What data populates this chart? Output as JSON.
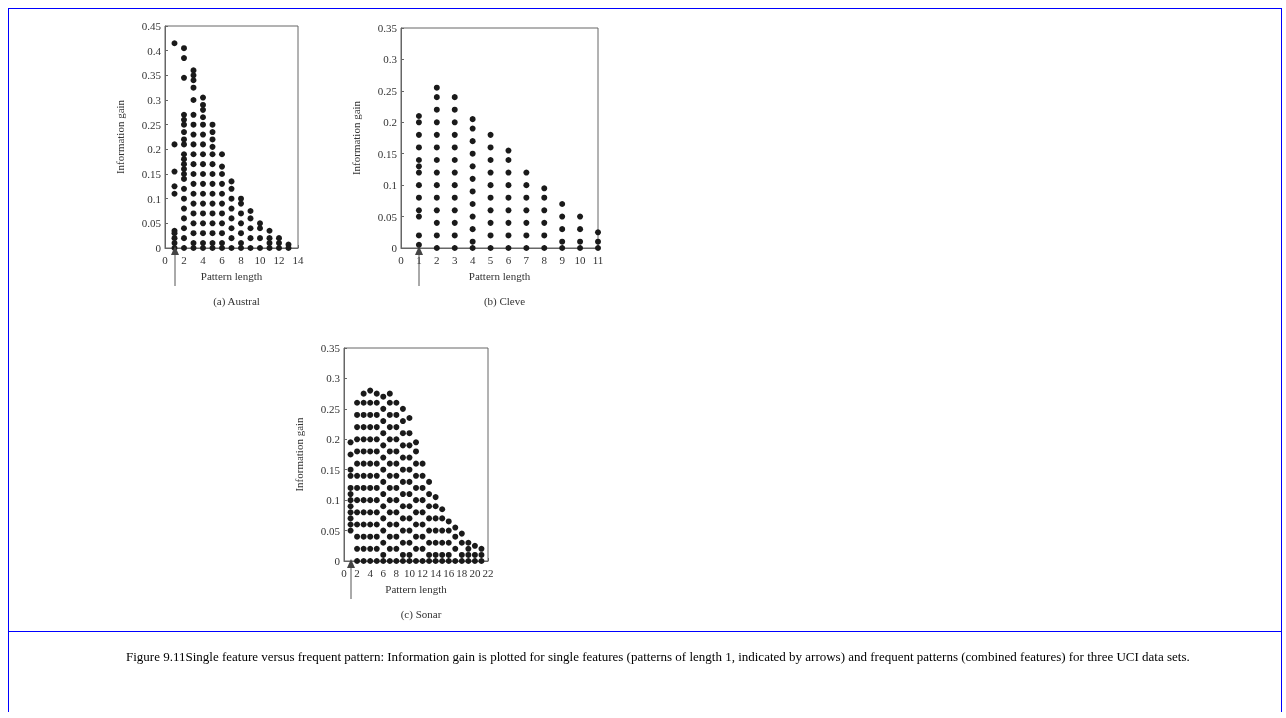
{
  "chart_data": [
    {
      "type": "scatter",
      "title": "(a) Austral",
      "xlabel": "Pattern length",
      "ylabel": "Information gain",
      "xlim": [
        0,
        14
      ],
      "xticks": [
        0,
        2,
        4,
        6,
        8,
        10,
        12,
        14
      ],
      "ylim": [
        0,
        0.45
      ],
      "yticks": [
        0,
        0.05,
        0.1,
        0.15,
        0.2,
        0.25,
        0.3,
        0.35,
        0.4,
        0.45
      ],
      "marker": "circle",
      "annotations": [
        "Figure 9.11Single feature versus frequent pattern: Information gain is plotted for single features (patterns of length 1, indicated by arrows) and frequent patterns (combined features) for three UCI data sets."
      ],
      "series": [
        {
          "color": "#1a1a1a",
          "x": [
            1,
            1,
            1,
            1,
            1,
            1,
            1,
            1,
            1,
            1
          ],
          "values": [
            0.415,
            0.21,
            0.155,
            0.125,
            0.11,
            0.035,
            0.03,
            0.02,
            0.01,
            0
          ]
        },
        {
          "color": "#1a1a1a",
          "x": [
            2,
            2,
            2,
            2,
            2,
            2,
            2,
            2,
            2,
            2,
            2,
            2,
            2,
            2,
            2,
            2,
            2,
            2,
            2,
            2,
            2,
            2
          ],
          "values": [
            0.405,
            0.385,
            0.345,
            0.27,
            0.26,
            0.25,
            0.235,
            0.22,
            0.21,
            0.19,
            0.18,
            0.17,
            0.16,
            0.15,
            0.14,
            0.12,
            0.1,
            0.08,
            0.06,
            0.04,
            0.02,
            0
          ]
        },
        {
          "color": "#1a1a1a",
          "x": [
            3,
            3,
            3,
            3,
            3,
            3,
            3,
            3,
            3,
            3,
            3,
            3,
            3,
            3,
            3,
            3,
            3,
            3,
            3,
            3
          ],
          "values": [
            0.36,
            0.35,
            0.34,
            0.325,
            0.3,
            0.27,
            0.25,
            0.23,
            0.21,
            0.19,
            0.17,
            0.15,
            0.13,
            0.11,
            0.09,
            0.07,
            0.05,
            0.03,
            0.01,
            0
          ]
        },
        {
          "color": "#1a1a1a",
          "x": [
            4,
            4,
            4,
            4,
            4,
            4,
            4,
            4,
            4,
            4,
            4,
            4,
            4,
            4,
            4,
            4,
            4,
            4
          ],
          "values": [
            0.305,
            0.29,
            0.28,
            0.265,
            0.25,
            0.23,
            0.21,
            0.19,
            0.17,
            0.15,
            0.13,
            0.11,
            0.09,
            0.07,
            0.05,
            0.03,
            0.01,
            0
          ]
        },
        {
          "color": "#1a1a1a",
          "x": [
            5,
            5,
            5,
            5,
            5,
            5,
            5,
            5,
            5,
            5,
            5,
            5,
            5,
            5,
            5
          ],
          "values": [
            0.25,
            0.235,
            0.22,
            0.205,
            0.19,
            0.17,
            0.15,
            0.13,
            0.11,
            0.09,
            0.07,
            0.05,
            0.03,
            0.01,
            0
          ]
        },
        {
          "color": "#1a1a1a",
          "x": [
            6,
            6,
            6,
            6,
            6,
            6,
            6,
            6,
            6,
            6,
            6
          ],
          "values": [
            0.19,
            0.165,
            0.15,
            0.13,
            0.11,
            0.09,
            0.07,
            0.05,
            0.03,
            0.01,
            0
          ]
        },
        {
          "color": "#1a1a1a",
          "x": [
            7,
            7,
            7,
            7,
            7,
            7,
            7,
            7
          ],
          "values": [
            0.135,
            0.12,
            0.1,
            0.08,
            0.06,
            0.04,
            0.02,
            0
          ]
        },
        {
          "color": "#1a1a1a",
          "x": [
            8,
            8,
            8,
            8,
            8,
            8,
            8
          ],
          "values": [
            0.1,
            0.09,
            0.07,
            0.05,
            0.03,
            0.01,
            0
          ]
        },
        {
          "color": "#1a1a1a",
          "x": [
            9,
            9,
            9,
            9,
            9
          ],
          "values": [
            0.075,
            0.06,
            0.04,
            0.02,
            0
          ]
        },
        {
          "color": "#1a1a1a",
          "x": [
            10,
            10,
            10,
            10
          ],
          "values": [
            0.05,
            0.04,
            0.02,
            0
          ]
        },
        {
          "color": "#1a1a1a",
          "x": [
            11,
            11,
            11,
            11
          ],
          "values": [
            0.035,
            0.02,
            0.01,
            0
          ]
        },
        {
          "color": "#1a1a1a",
          "x": [
            12,
            12,
            12
          ],
          "values": [
            0.02,
            0.01,
            0
          ]
        },
        {
          "color": "#1a1a1a",
          "x": [
            13,
            13
          ],
          "values": [
            0.007,
            0
          ]
        }
      ]
    },
    {
      "type": "scatter",
      "title": "(b) Cleve",
      "xlabel": "Pattern length",
      "ylabel": "Information gain",
      "xlim": [
        0,
        11
      ],
      "xticks": [
        0,
        1,
        2,
        3,
        4,
        5,
        6,
        7,
        8,
        9,
        10,
        11
      ],
      "ylim": [
        0,
        0.35
      ],
      "yticks": [
        0,
        0.05,
        0.1,
        0.15,
        0.2,
        0.25,
        0.3,
        0.35
      ],
      "marker": "circle",
      "series": [
        {
          "color": "#1a1a1a",
          "x": [
            1,
            1,
            1,
            1,
            1,
            1,
            1,
            1,
            1,
            1,
            1,
            1,
            1
          ],
          "values": [
            0.21,
            0.2,
            0.18,
            0.16,
            0.14,
            0.13,
            0.12,
            0.1,
            0.08,
            0.06,
            0.05,
            0.02,
            0.005
          ]
        },
        {
          "color": "#1a1a1a",
          "x": [
            2,
            2,
            2,
            2,
            2,
            2,
            2,
            2,
            2,
            2,
            2,
            2,
            2,
            2
          ],
          "values": [
            0.255,
            0.24,
            0.22,
            0.2,
            0.18,
            0.16,
            0.14,
            0.12,
            0.1,
            0.08,
            0.06,
            0.04,
            0.02,
            0
          ]
        },
        {
          "color": "#1a1a1a",
          "x": [
            3,
            3,
            3,
            3,
            3,
            3,
            3,
            3,
            3,
            3,
            3,
            3,
            3
          ],
          "values": [
            0.24,
            0.22,
            0.2,
            0.18,
            0.16,
            0.14,
            0.12,
            0.1,
            0.08,
            0.06,
            0.04,
            0.02,
            0
          ]
        },
        {
          "color": "#1a1a1a",
          "x": [
            4,
            4,
            4,
            4,
            4,
            4,
            4,
            4,
            4,
            4,
            4,
            4
          ],
          "values": [
            0.205,
            0.19,
            0.17,
            0.15,
            0.13,
            0.11,
            0.09,
            0.07,
            0.05,
            0.03,
            0.01,
            0
          ]
        },
        {
          "color": "#1a1a1a",
          "x": [
            5,
            5,
            5,
            5,
            5,
            5,
            5,
            5,
            5,
            5
          ],
          "values": [
            0.18,
            0.16,
            0.14,
            0.12,
            0.1,
            0.08,
            0.06,
            0.04,
            0.02,
            0
          ]
        },
        {
          "color": "#1a1a1a",
          "x": [
            6,
            6,
            6,
            6,
            6,
            6,
            6,
            6,
            6
          ],
          "values": [
            0.155,
            0.14,
            0.12,
            0.1,
            0.08,
            0.06,
            0.04,
            0.02,
            0
          ]
        },
        {
          "color": "#1a1a1a",
          "x": [
            7,
            7,
            7,
            7,
            7,
            7,
            7
          ],
          "values": [
            0.12,
            0.1,
            0.08,
            0.06,
            0.04,
            0.02,
            0
          ]
        },
        {
          "color": "#1a1a1a",
          "x": [
            8,
            8,
            8,
            8,
            8,
            8
          ],
          "values": [
            0.095,
            0.08,
            0.06,
            0.04,
            0.02,
            0
          ]
        },
        {
          "color": "#1a1a1a",
          "x": [
            9,
            9,
            9,
            9,
            9
          ],
          "values": [
            0.07,
            0.05,
            0.03,
            0.01,
            0
          ]
        },
        {
          "color": "#1a1a1a",
          "x": [
            10,
            10,
            10,
            10
          ],
          "values": [
            0.05,
            0.03,
            0.01,
            0
          ]
        },
        {
          "color": "#1a1a1a",
          "x": [
            11,
            11,
            11
          ],
          "values": [
            0.025,
            0.01,
            0
          ]
        }
      ]
    },
    {
      "type": "scatter",
      "title": "(c) Sonar",
      "xlabel": "Pattern length",
      "ylabel": "Information gain",
      "xlim": [
        0,
        22
      ],
      "xticks": [
        0,
        2,
        4,
        6,
        8,
        10,
        12,
        14,
        16,
        18,
        20,
        22
      ],
      "ylim": [
        0,
        0.35
      ],
      "yticks": [
        0,
        0.05,
        0.1,
        0.15,
        0.2,
        0.25,
        0.3,
        0.35
      ],
      "marker": "circle",
      "series": [
        {
          "color": "#1a1a1a",
          "x": [
            1,
            1,
            1,
            1,
            1,
            1,
            1,
            1,
            1,
            1,
            1,
            1
          ],
          "values": [
            0.195,
            0.175,
            0.15,
            0.14,
            0.12,
            0.11,
            0.1,
            0.09,
            0.08,
            0.07,
            0.06,
            0.05
          ]
        },
        {
          "color": "#1a1a1a",
          "x": [
            2,
            2,
            2,
            2,
            2,
            2,
            2,
            2,
            2,
            2,
            2,
            2,
            2,
            2
          ],
          "values": [
            0.26,
            0.24,
            0.22,
            0.2,
            0.18,
            0.16,
            0.14,
            0.12,
            0.1,
            0.08,
            0.06,
            0.04,
            0.02,
            0
          ]
        },
        {
          "color": "#1a1a1a",
          "x": [
            3,
            3,
            3,
            3,
            3,
            3,
            3,
            3,
            3,
            3,
            3,
            3,
            3,
            3,
            3
          ],
          "values": [
            0.275,
            0.26,
            0.24,
            0.22,
            0.2,
            0.18,
            0.16,
            0.14,
            0.12,
            0.1,
            0.08,
            0.06,
            0.04,
            0.02,
            0
          ]
        },
        {
          "color": "#1a1a1a",
          "x": [
            4,
            4,
            4,
            4,
            4,
            4,
            4,
            4,
            4,
            4,
            4,
            4,
            4,
            4,
            4
          ],
          "values": [
            0.28,
            0.26,
            0.24,
            0.22,
            0.2,
            0.18,
            0.16,
            0.14,
            0.12,
            0.1,
            0.08,
            0.06,
            0.04,
            0.02,
            0
          ]
        },
        {
          "color": "#1a1a1a",
          "x": [
            5,
            5,
            5,
            5,
            5,
            5,
            5,
            5,
            5,
            5,
            5,
            5,
            5,
            5,
            5
          ],
          "values": [
            0.275,
            0.26,
            0.24,
            0.22,
            0.2,
            0.18,
            0.16,
            0.14,
            0.12,
            0.1,
            0.08,
            0.06,
            0.04,
            0.02,
            0
          ]
        },
        {
          "color": "#1a1a1a",
          "x": [
            6,
            6,
            6,
            6,
            6,
            6,
            6,
            6,
            6,
            6,
            6,
            6,
            6,
            6,
            6
          ],
          "values": [
            0.27,
            0.25,
            0.23,
            0.21,
            0.19,
            0.17,
            0.15,
            0.13,
            0.11,
            0.09,
            0.07,
            0.05,
            0.03,
            0.01,
            0
          ]
        },
        {
          "color": "#1a1a1a",
          "x": [
            7,
            7,
            7,
            7,
            7,
            7,
            7,
            7,
            7,
            7,
            7,
            7,
            7,
            7,
            7
          ],
          "values": [
            0.275,
            0.26,
            0.24,
            0.22,
            0.2,
            0.18,
            0.16,
            0.14,
            0.12,
            0.1,
            0.08,
            0.06,
            0.04,
            0.02,
            0
          ]
        },
        {
          "color": "#1a1a1a",
          "x": [
            8,
            8,
            8,
            8,
            8,
            8,
            8,
            8,
            8,
            8,
            8,
            8,
            8,
            8
          ],
          "values": [
            0.26,
            0.24,
            0.22,
            0.2,
            0.18,
            0.16,
            0.14,
            0.12,
            0.1,
            0.08,
            0.06,
            0.04,
            0.02,
            0
          ]
        },
        {
          "color": "#1a1a1a",
          "x": [
            9,
            9,
            9,
            9,
            9,
            9,
            9,
            9,
            9,
            9,
            9,
            9,
            9,
            9
          ],
          "values": [
            0.25,
            0.23,
            0.21,
            0.19,
            0.17,
            0.15,
            0.13,
            0.11,
            0.09,
            0.07,
            0.05,
            0.03,
            0.01,
            0
          ]
        },
        {
          "color": "#1a1a1a",
          "x": [
            10,
            10,
            10,
            10,
            10,
            10,
            10,
            10,
            10,
            10,
            10,
            10,
            10
          ],
          "values": [
            0.235,
            0.21,
            0.19,
            0.17,
            0.15,
            0.13,
            0.11,
            0.09,
            0.07,
            0.05,
            0.03,
            0.01,
            0
          ]
        },
        {
          "color": "#1a1a1a",
          "x": [
            11,
            11,
            11,
            11,
            11,
            11,
            11,
            11,
            11,
            11,
            11
          ],
          "values": [
            0.195,
            0.18,
            0.16,
            0.14,
            0.12,
            0.1,
            0.08,
            0.06,
            0.04,
            0.02,
            0
          ]
        },
        {
          "color": "#1a1a1a",
          "x": [
            12,
            12,
            12,
            12,
            12,
            12,
            12,
            12,
            12
          ],
          "values": [
            0.16,
            0.14,
            0.12,
            0.1,
            0.08,
            0.06,
            0.04,
            0.02,
            0
          ]
        },
        {
          "color": "#1a1a1a",
          "x": [
            13,
            13,
            13,
            13,
            13,
            13,
            13,
            13
          ],
          "values": [
            0.13,
            0.11,
            0.09,
            0.07,
            0.05,
            0.03,
            0.01,
            0
          ]
        },
        {
          "color": "#1a1a1a",
          "x": [
            14,
            14,
            14,
            14,
            14,
            14,
            14
          ],
          "values": [
            0.105,
            0.09,
            0.07,
            0.05,
            0.03,
            0.01,
            0
          ]
        },
        {
          "color": "#1a1a1a",
          "x": [
            15,
            15,
            15,
            15,
            15,
            15
          ],
          "values": [
            0.085,
            0.07,
            0.05,
            0.03,
            0.01,
            0
          ]
        },
        {
          "color": "#1a1a1a",
          "x": [
            16,
            16,
            16,
            16,
            16
          ],
          "values": [
            0.065,
            0.05,
            0.03,
            0.01,
            0
          ]
        },
        {
          "color": "#1a1a1a",
          "x": [
            17,
            17,
            17,
            17
          ],
          "values": [
            0.055,
            0.04,
            0.02,
            0
          ]
        },
        {
          "color": "#1a1a1a",
          "x": [
            18,
            18,
            18,
            18
          ],
          "values": [
            0.045,
            0.03,
            0.01,
            0
          ]
        },
        {
          "color": "#1a1a1a",
          "x": [
            19,
            19,
            19,
            19
          ],
          "values": [
            0.03,
            0.02,
            0.01,
            0
          ]
        },
        {
          "color": "#1a1a1a",
          "x": [
            20,
            20,
            20
          ],
          "values": [
            0.025,
            0.01,
            0
          ]
        },
        {
          "color": "#1a1a1a",
          "x": [
            21,
            21,
            21
          ],
          "values": [
            0.02,
            0.01,
            0
          ]
        }
      ]
    }
  ]
}
